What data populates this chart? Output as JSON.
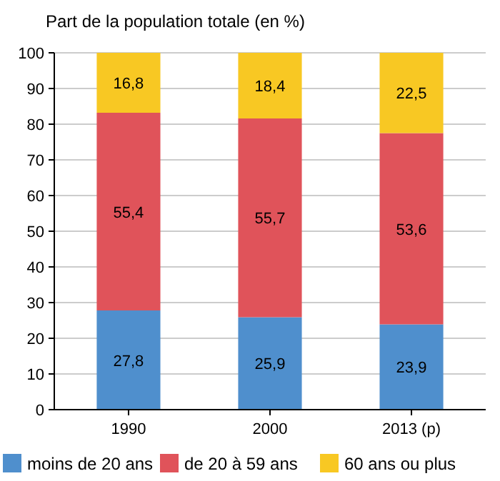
{
  "chart_data": {
    "type": "bar",
    "stacked": true,
    "ylabel": "Part de la population totale (en %)",
    "categories": [
      "1990",
      "2000",
      "2013 (p)"
    ],
    "series": [
      {
        "name": "moins de 20 ans",
        "color": "#4f8fcd",
        "values": [
          27.8,
          25.9,
          23.9
        ],
        "value_labels": [
          "27,8",
          "25,9",
          "23,9"
        ]
      },
      {
        "name": "de 20 à 59 ans",
        "color": "#e0535a",
        "values": [
          55.4,
          55.7,
          53.6
        ],
        "value_labels": [
          "55,4",
          "55,7",
          "53,6"
        ]
      },
      {
        "name": "60 ans ou plus",
        "color": "#f8c823",
        "values": [
          16.8,
          18.4,
          22.5
        ],
        "value_labels": [
          "16,8",
          "18,4",
          "22,5"
        ]
      }
    ],
    "ylim": [
      0,
      100
    ],
    "yticks": [
      0,
      10,
      20,
      30,
      40,
      50,
      60,
      70,
      80,
      90,
      100
    ],
    "grid": "y",
    "legend": "bottom"
  }
}
